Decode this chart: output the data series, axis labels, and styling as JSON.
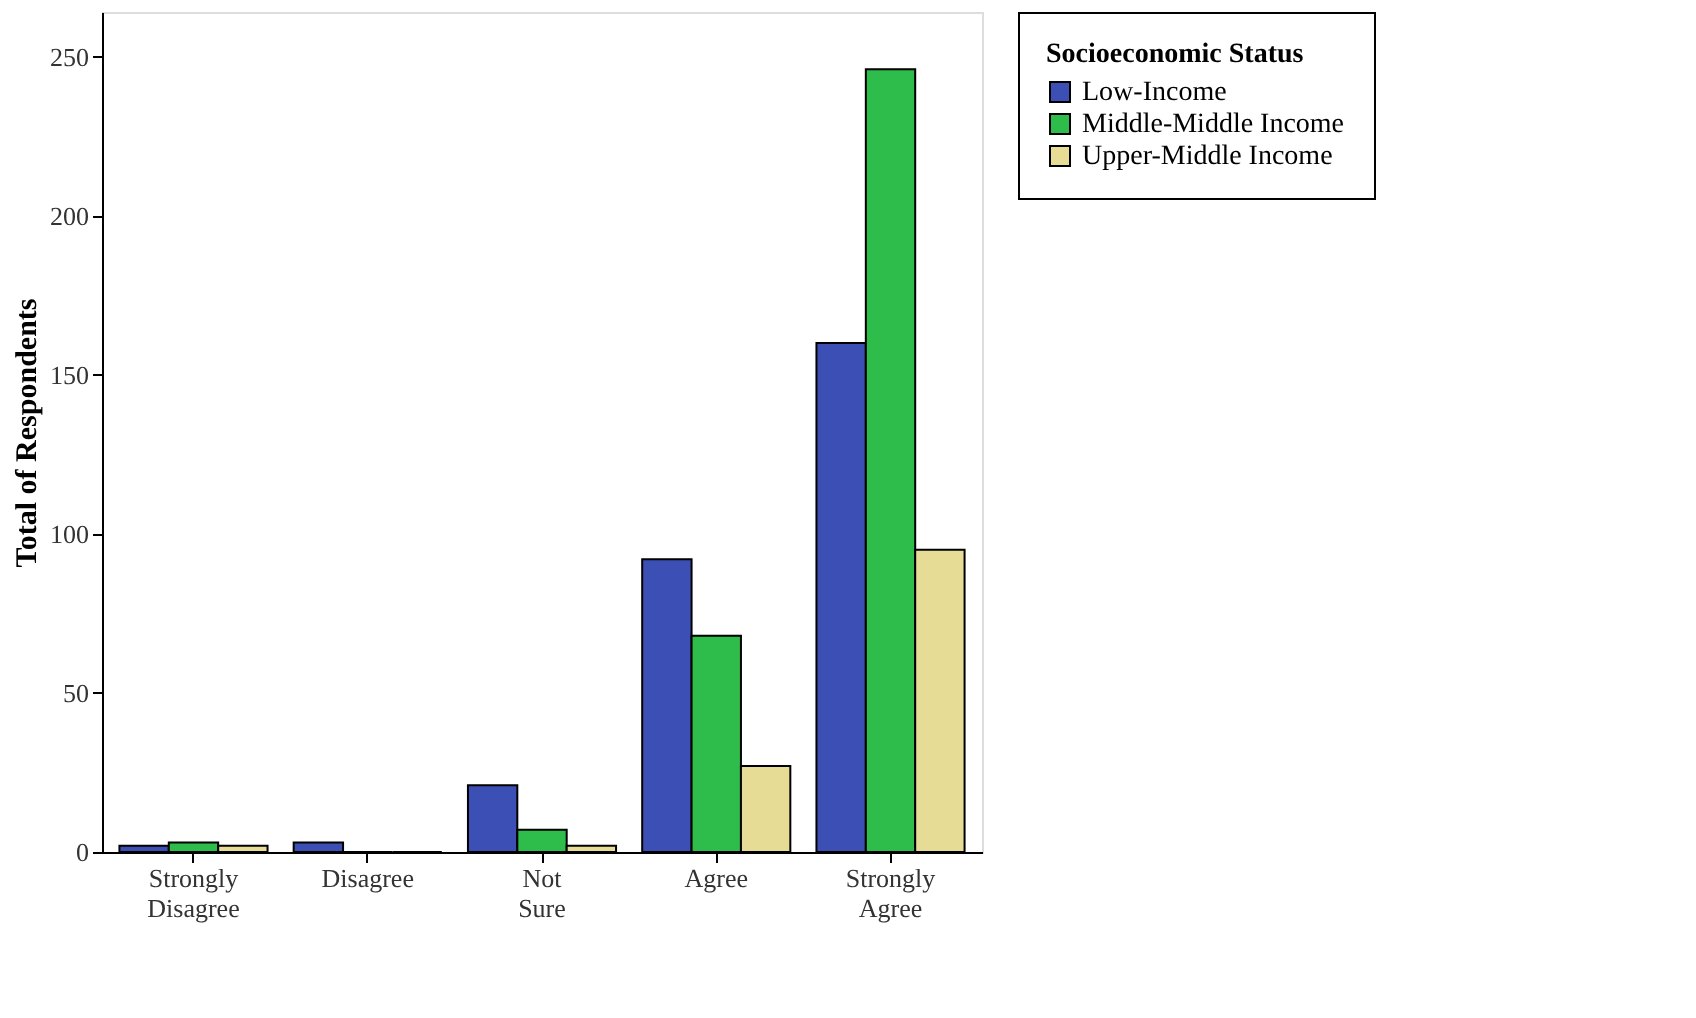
{
  "chart_data": {
    "type": "bar",
    "ylabel": "Total of Respondents",
    "legend_title": "Socioeconomic Status",
    "legend": "right",
    "categories": [
      "Strongly Disagree",
      "Disagree",
      "Not Sure",
      "Agree",
      "Strongly Agree"
    ],
    "series": [
      {
        "name": "Low-Income",
        "color": "#3b4fb5",
        "values": [
          2,
          3,
          21,
          92,
          160
        ]
      },
      {
        "name": "Middle-Middle Income",
        "color": "#2ebd4a",
        "values": [
          3,
          0,
          7,
          68,
          246
        ]
      },
      {
        "name": "Upper-Middle Income",
        "color": "#e6dc96",
        "values": [
          2,
          0,
          2,
          27,
          95
        ]
      }
    ],
    "ylim": [
      0,
      264
    ],
    "yticks": [
      0,
      50,
      100,
      150,
      200,
      250
    ],
    "grid": false
  }
}
